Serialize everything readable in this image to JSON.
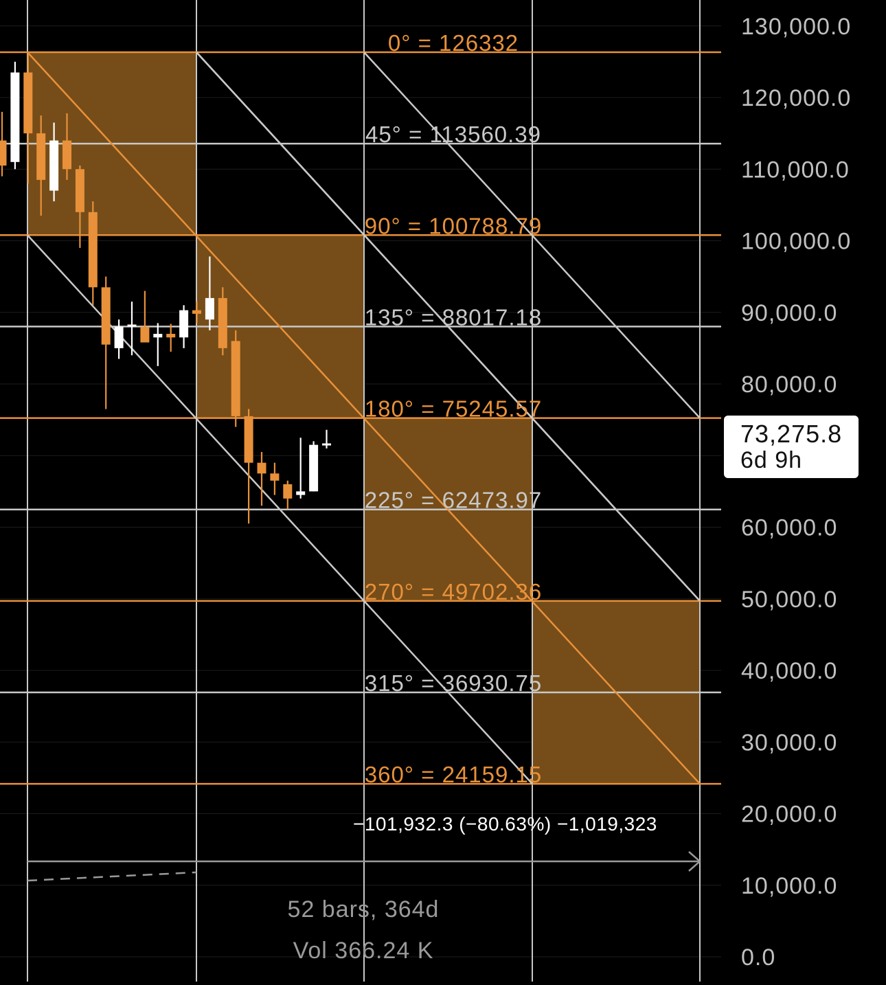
{
  "chart_data": {
    "type": "candlestick",
    "y_axis": {
      "ticks": [
        "130,000.0",
        "120,000.0",
        "110,000.0",
        "100,000.0",
        "90,000.0",
        "80,000.0",
        "70,000.0",
        "60,000.0",
        "50,000.0",
        "40,000.0",
        "30,000.0",
        "20,000.0",
        "10,000.0",
        "0.0"
      ],
      "tick_values": [
        130000,
        120000,
        110000,
        100000,
        90000,
        80000,
        70000,
        60000,
        50000,
        40000,
        30000,
        20000,
        10000,
        0
      ],
      "range": [
        0,
        130000
      ]
    },
    "gann_levels": [
      {
        "label": "0° = 126332",
        "value": 126332,
        "color": "#e8913a"
      },
      {
        "label": "45° = 113560.39",
        "value": 113560.39,
        "color": "#c8c8c8"
      },
      {
        "label": "90° = 100788.79",
        "value": 100788.79,
        "color": "#e8913a"
      },
      {
        "label": "135° = 88017.18",
        "value": 88017.18,
        "color": "#c8c8c8"
      },
      {
        "label": "180° = 75245.57",
        "value": 75245.57,
        "color": "#e8913a"
      },
      {
        "label": "225° = 62473.97",
        "value": 62473.97,
        "color": "#c8c8c8"
      },
      {
        "label": "270° = 49702.36",
        "value": 49702.36,
        "color": "#e8913a"
      },
      {
        "label": "315° = 36930.75",
        "value": 36930.75,
        "color": "#c8c8c8"
      },
      {
        "label": "360° = 24159.15",
        "value": 24159.15,
        "color": "#e8913a"
      }
    ],
    "candles": [
      {
        "o": 114000,
        "h": 118000,
        "l": 109000,
        "c": 110500,
        "dir": "down"
      },
      {
        "o": 111000,
        "h": 125000,
        "l": 110000,
        "c": 123500,
        "dir": "up"
      },
      {
        "o": 123500,
        "h": 126300,
        "l": 108000,
        "c": 115000,
        "dir": "down"
      },
      {
        "o": 115000,
        "h": 117500,
        "l": 103500,
        "c": 108500,
        "dir": "down"
      },
      {
        "o": 107000,
        "h": 116500,
        "l": 105500,
        "c": 114000,
        "dir": "up"
      },
      {
        "o": 114000,
        "h": 117800,
        "l": 108500,
        "c": 110000,
        "dir": "down"
      },
      {
        "o": 110000,
        "h": 110500,
        "l": 99000,
        "c": 104000,
        "dir": "down"
      },
      {
        "o": 104000,
        "h": 105500,
        "l": 91000,
        "c": 93500,
        "dir": "down"
      },
      {
        "o": 93500,
        "h": 95000,
        "l": 76500,
        "c": 85500,
        "dir": "down"
      },
      {
        "o": 85000,
        "h": 89000,
        "l": 83500,
        "c": 88000,
        "dir": "up"
      },
      {
        "o": 88000,
        "h": 91500,
        "l": 84000,
        "c": 88300,
        "dir": "up"
      },
      {
        "o": 88000,
        "h": 93000,
        "l": 86000,
        "c": 85800,
        "dir": "down"
      },
      {
        "o": 86500,
        "h": 88500,
        "l": 82500,
        "c": 87000,
        "dir": "up"
      },
      {
        "o": 87000,
        "h": 88400,
        "l": 84500,
        "c": 86500,
        "dir": "down"
      },
      {
        "o": 86500,
        "h": 91000,
        "l": 85000,
        "c": 90300,
        "dir": "up"
      },
      {
        "o": 90300,
        "h": 91500,
        "l": 88500,
        "c": 89800,
        "dir": "down"
      },
      {
        "o": 89000,
        "h": 97800,
        "l": 87500,
        "c": 92000,
        "dir": "up"
      },
      {
        "o": 92000,
        "h": 93500,
        "l": 84000,
        "c": 85000,
        "dir": "down"
      },
      {
        "o": 86000,
        "h": 87500,
        "l": 74000,
        "c": 75500,
        "dir": "down"
      },
      {
        "o": 75500,
        "h": 76500,
        "l": 60500,
        "c": 69000,
        "dir": "down"
      },
      {
        "o": 69000,
        "h": 70500,
        "l": 63000,
        "c": 67500,
        "dir": "down"
      },
      {
        "o": 67500,
        "h": 69000,
        "l": 64500,
        "c": 66500,
        "dir": "down"
      },
      {
        "o": 66000,
        "h": 66500,
        "l": 62500,
        "c": 64000,
        "dir": "down"
      },
      {
        "o": 64500,
        "h": 72500,
        "l": 64000,
        "c": 65000,
        "dir": "up"
      },
      {
        "o": 65000,
        "h": 72000,
        "l": 65000,
        "c": 71500,
        "dir": "up"
      },
      {
        "o": 71500,
        "h": 73600,
        "l": 71000,
        "c": 71700,
        "dir": "up"
      }
    ],
    "price_label": {
      "value": "73,275.8",
      "time": "6d 9h"
    },
    "measure_text": "−101,932.3 (−80.63%) −1,019,323",
    "bars_text": "52 bars, 364d",
    "vol_text": "Vol 366.24 K",
    "colors": {
      "orange": "#e8913a",
      "box_fill": "#7a4f1a",
      "gray": "#c8c8c8",
      "up_candle": "#ffffff",
      "down_candle": "#e8913a"
    }
  }
}
